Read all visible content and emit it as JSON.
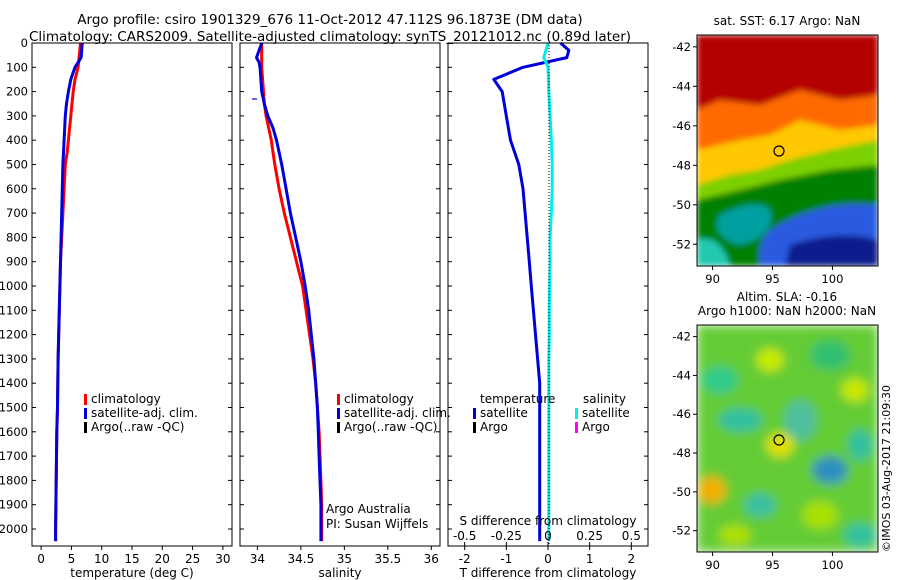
{
  "header": {
    "line1": "Argo profile: csiro 1901329_676 11-Oct-2012 47.112S 96.1873E (DM data)",
    "line2": "Climatology: CARS2009. Satellite-adjusted climatology: synTS_20121012.nc (0.89d later)"
  },
  "colors": {
    "climatology": "#ff0000",
    "satellite": "#0000dd",
    "argo": "#000000",
    "satellite_salinity": "#00eeee",
    "argo_salinity": "#ff00ff"
  },
  "depth_ticks": [
    "0",
    "100",
    "200",
    "300",
    "400",
    "500",
    "600",
    "700",
    "800",
    "900",
    "1000",
    "1100",
    "1200",
    "1300",
    "1400",
    "1500",
    "1600",
    "1700",
    "1800",
    "1900",
    "2000"
  ],
  "chart_data": [
    {
      "type": "line",
      "xlabel": "temperature (deg C)",
      "ylabel": "",
      "xlim": [
        -1.5,
        31.5
      ],
      "ylim": [
        2070,
        0
      ],
      "xticks": [
        0,
        5,
        10,
        15,
        20,
        25,
        30
      ],
      "xtick_labels": [
        "0",
        "5",
        "10",
        "15",
        "20",
        "25",
        "30"
      ],
      "legend": [
        "climatology",
        "satellite-adj. clim.",
        "Argo(..raw -QC)"
      ],
      "series": [
        {
          "name": "climatology",
          "color": "#ff0000",
          "points": [
            [
              6.5,
              0
            ],
            [
              6.3,
              50
            ],
            [
              6.1,
              100
            ],
            [
              5.6,
              150
            ],
            [
              5.3,
              200
            ],
            [
              5.1,
              250
            ],
            [
              4.9,
              300
            ],
            [
              4.7,
              350
            ],
            [
              4.5,
              400
            ],
            [
              4.3,
              450
            ],
            [
              4.0,
              500
            ],
            [
              3.8,
              600
            ],
            [
              3.6,
              700
            ],
            [
              3.4,
              800
            ],
            [
              3.2,
              900
            ],
            [
              3.1,
              1000
            ],
            [
              3.0,
              1100
            ],
            [
              2.9,
              1200
            ],
            [
              2.8,
              1300
            ],
            [
              2.75,
              1400
            ],
            [
              2.7,
              1500
            ],
            [
              2.6,
              1600
            ],
            [
              2.55,
              1700
            ],
            [
              2.5,
              1800
            ],
            [
              2.45,
              1900
            ],
            [
              2.4,
              2000
            ],
            [
              2.4,
              2050
            ]
          ]
        },
        {
          "name": "satellite-adj. clim.",
          "color": "#0000dd",
          "points": [
            [
              6.8,
              0
            ],
            [
              6.6,
              60
            ],
            [
              5.6,
              100
            ],
            [
              4.9,
              150
            ],
            [
              4.5,
              200
            ],
            [
              4.2,
              250
            ],
            [
              4.0,
              300
            ],
            [
              3.9,
              350
            ],
            [
              3.8,
              400
            ],
            [
              3.7,
              450
            ],
            [
              3.6,
              500
            ],
            [
              3.5,
              600
            ],
            [
              3.4,
              700
            ],
            [
              3.3,
              800
            ],
            [
              3.2,
              900
            ],
            [
              3.1,
              1000
            ],
            [
              3.0,
              1100
            ],
            [
              2.9,
              1200
            ],
            [
              2.8,
              1300
            ],
            [
              2.75,
              1400
            ],
            [
              2.7,
              1500
            ],
            [
              2.6,
              1600
            ],
            [
              2.55,
              1700
            ],
            [
              2.5,
              1800
            ],
            [
              2.45,
              1900
            ],
            [
              2.4,
              2000
            ],
            [
              2.4,
              2050
            ]
          ]
        }
      ],
      "annotations": []
    },
    {
      "type": "line",
      "xlabel": "salinity",
      "ylabel": "",
      "xlim": [
        33.8,
        36.1
      ],
      "ylim": [
        2070,
        0
      ],
      "xticks": [
        34,
        34.5,
        35,
        35.5,
        36
      ],
      "xtick_labels": [
        "34",
        "34.5",
        "35",
        "35.5",
        "36"
      ],
      "legend": [
        "climatology",
        "satellite-adj. clim.",
        "Argo(..raw -QC)"
      ],
      "series": [
        {
          "name": "climatology",
          "color": "#ff0000",
          "points": [
            [
              34.05,
              0
            ],
            [
              34.05,
              100
            ],
            [
              34.06,
              150
            ],
            [
              34.07,
              200
            ],
            [
              34.08,
              250
            ],
            [
              34.1,
              300
            ],
            [
              34.13,
              350
            ],
            [
              34.16,
              400
            ],
            [
              34.18,
              450
            ],
            [
              34.2,
              500
            ],
            [
              34.25,
              600
            ],
            [
              34.31,
              700
            ],
            [
              34.38,
              800
            ],
            [
              34.45,
              900
            ],
            [
              34.52,
              1000
            ],
            [
              34.56,
              1100
            ],
            [
              34.6,
              1200
            ],
            [
              34.64,
              1300
            ],
            [
              34.67,
              1400
            ],
            [
              34.69,
              1500
            ],
            [
              34.71,
              1600
            ],
            [
              34.72,
              1700
            ],
            [
              34.73,
              1800
            ],
            [
              34.74,
              1900
            ],
            [
              34.74,
              2000
            ],
            [
              34.74,
              2050
            ]
          ]
        },
        {
          "name": "satellite-adj. clim.",
          "color": "#0000dd",
          "points": [
            [
              34.05,
              0
            ],
            [
              34.02,
              30
            ],
            [
              33.99,
              60
            ],
            [
              34.02,
              80
            ],
            [
              34.03,
              100
            ],
            [
              34.04,
              150
            ],
            [
              34.05,
              200
            ],
            [
              34.08,
              250
            ],
            [
              34.12,
              300
            ],
            [
              34.18,
              350
            ],
            [
              34.22,
              400
            ],
            [
              34.25,
              450
            ],
            [
              34.28,
              500
            ],
            [
              34.33,
              600
            ],
            [
              34.38,
              700
            ],
            [
              34.44,
              800
            ],
            [
              34.5,
              900
            ],
            [
              34.55,
              1000
            ],
            [
              34.59,
              1100
            ],
            [
              34.62,
              1200
            ],
            [
              34.65,
              1300
            ],
            [
              34.67,
              1400
            ],
            [
              34.69,
              1500
            ],
            [
              34.7,
              1600
            ],
            [
              34.71,
              1700
            ],
            [
              34.72,
              1800
            ],
            [
              34.73,
              1900
            ],
            [
              34.73,
              2000
            ],
            [
              34.73,
              2050
            ]
          ]
        }
      ],
      "annotations": [
        "Argo Australia",
        "PI: Susan Wijffels"
      ]
    },
    {
      "type": "line",
      "xlabel": "T difference from climatology",
      "ylabel": "",
      "top_axis_label": "S difference from climatology",
      "xlim": [
        -2.4,
        2.4
      ],
      "ylim": [
        2070,
        0
      ],
      "xticks": [
        -2,
        -1,
        0,
        1,
        2
      ],
      "xtick_labels": [
        "-2",
        "-1",
        "0",
        "1",
        "2"
      ],
      "top_ticks": [
        -0.5,
        -0.25,
        0,
        0.25,
        0.5
      ],
      "top_tick_labels": [
        "-0.5",
        "-0.25",
        "0",
        "0.25",
        "0.5"
      ],
      "legend_headers": [
        "temperature",
        "salinity"
      ],
      "legend": [
        "satellite",
        "Argo",
        "satellite",
        "Argo"
      ],
      "series": [
        {
          "name": "satellite",
          "quantity": "temperature",
          "color": "#0000dd",
          "points": [
            [
              0.3,
              0
            ],
            [
              0.5,
              30
            ],
            [
              0.45,
              60
            ],
            [
              -0.6,
              100
            ],
            [
              -1.3,
              150
            ],
            [
              -1.1,
              200
            ],
            [
              -1.0,
              300
            ],
            [
              -0.9,
              400
            ],
            [
              -0.7,
              500
            ],
            [
              -0.6,
              600
            ],
            [
              -0.55,
              700
            ],
            [
              -0.5,
              800
            ],
            [
              -0.45,
              900
            ],
            [
              -0.4,
              1000
            ],
            [
              -0.35,
              1100
            ],
            [
              -0.3,
              1200
            ],
            [
              -0.25,
              1300
            ],
            [
              -0.2,
              1400
            ],
            [
              -0.2,
              1500
            ],
            [
              -0.2,
              1600
            ],
            [
              -0.2,
              1700
            ],
            [
              -0.2,
              1800
            ],
            [
              -0.2,
              1900
            ],
            [
              -0.2,
              2000
            ],
            [
              -0.2,
              2050
            ]
          ]
        },
        {
          "name": "satellite",
          "quantity": "salinity",
          "color": "#00eeee",
          "points": [
            [
              0.0,
              0
            ],
            [
              -0.1,
              60
            ],
            [
              0.0,
              100
            ],
            [
              0.02,
              200
            ],
            [
              0.05,
              300
            ],
            [
              0.08,
              400
            ],
            [
              0.1,
              500
            ],
            [
              0.1,
              600
            ],
            [
              0.08,
              700
            ],
            [
              0.05,
              800
            ],
            [
              0.05,
              900
            ],
            [
              0.04,
              1000
            ],
            [
              0.03,
              1100
            ],
            [
              0.03,
              1200
            ],
            [
              0.02,
              1300
            ],
            [
              0.02,
              1400
            ],
            [
              0.02,
              1500
            ],
            [
              0.02,
              1600
            ],
            [
              0.02,
              1700
            ],
            [
              0.02,
              1800
            ],
            [
              0.02,
              1900
            ],
            [
              0.02,
              2000
            ],
            [
              0.02,
              2050
            ]
          ]
        }
      ]
    }
  ],
  "maps": [
    {
      "title": "sat. SST: 6.17 Argo: NaN",
      "palette": "sst",
      "lat_ticks": [
        "-42",
        "-44",
        "-46",
        "-48",
        "-50",
        "-52"
      ],
      "lon_ticks": [
        "90",
        "95",
        "100"
      ]
    },
    {
      "title_line1": "Altim. SLA: -0.16",
      "title_line2": "Argo h1000: NaN h2000: NaN",
      "palette": "sla",
      "lat_ticks": [
        "-42",
        "-44",
        "-46",
        "-48",
        "-50",
        "-52"
      ],
      "lon_ticks": [
        "90",
        "95",
        "100"
      ]
    }
  ],
  "watermark": "©IMOS 03-Aug-2017 21:09:30"
}
